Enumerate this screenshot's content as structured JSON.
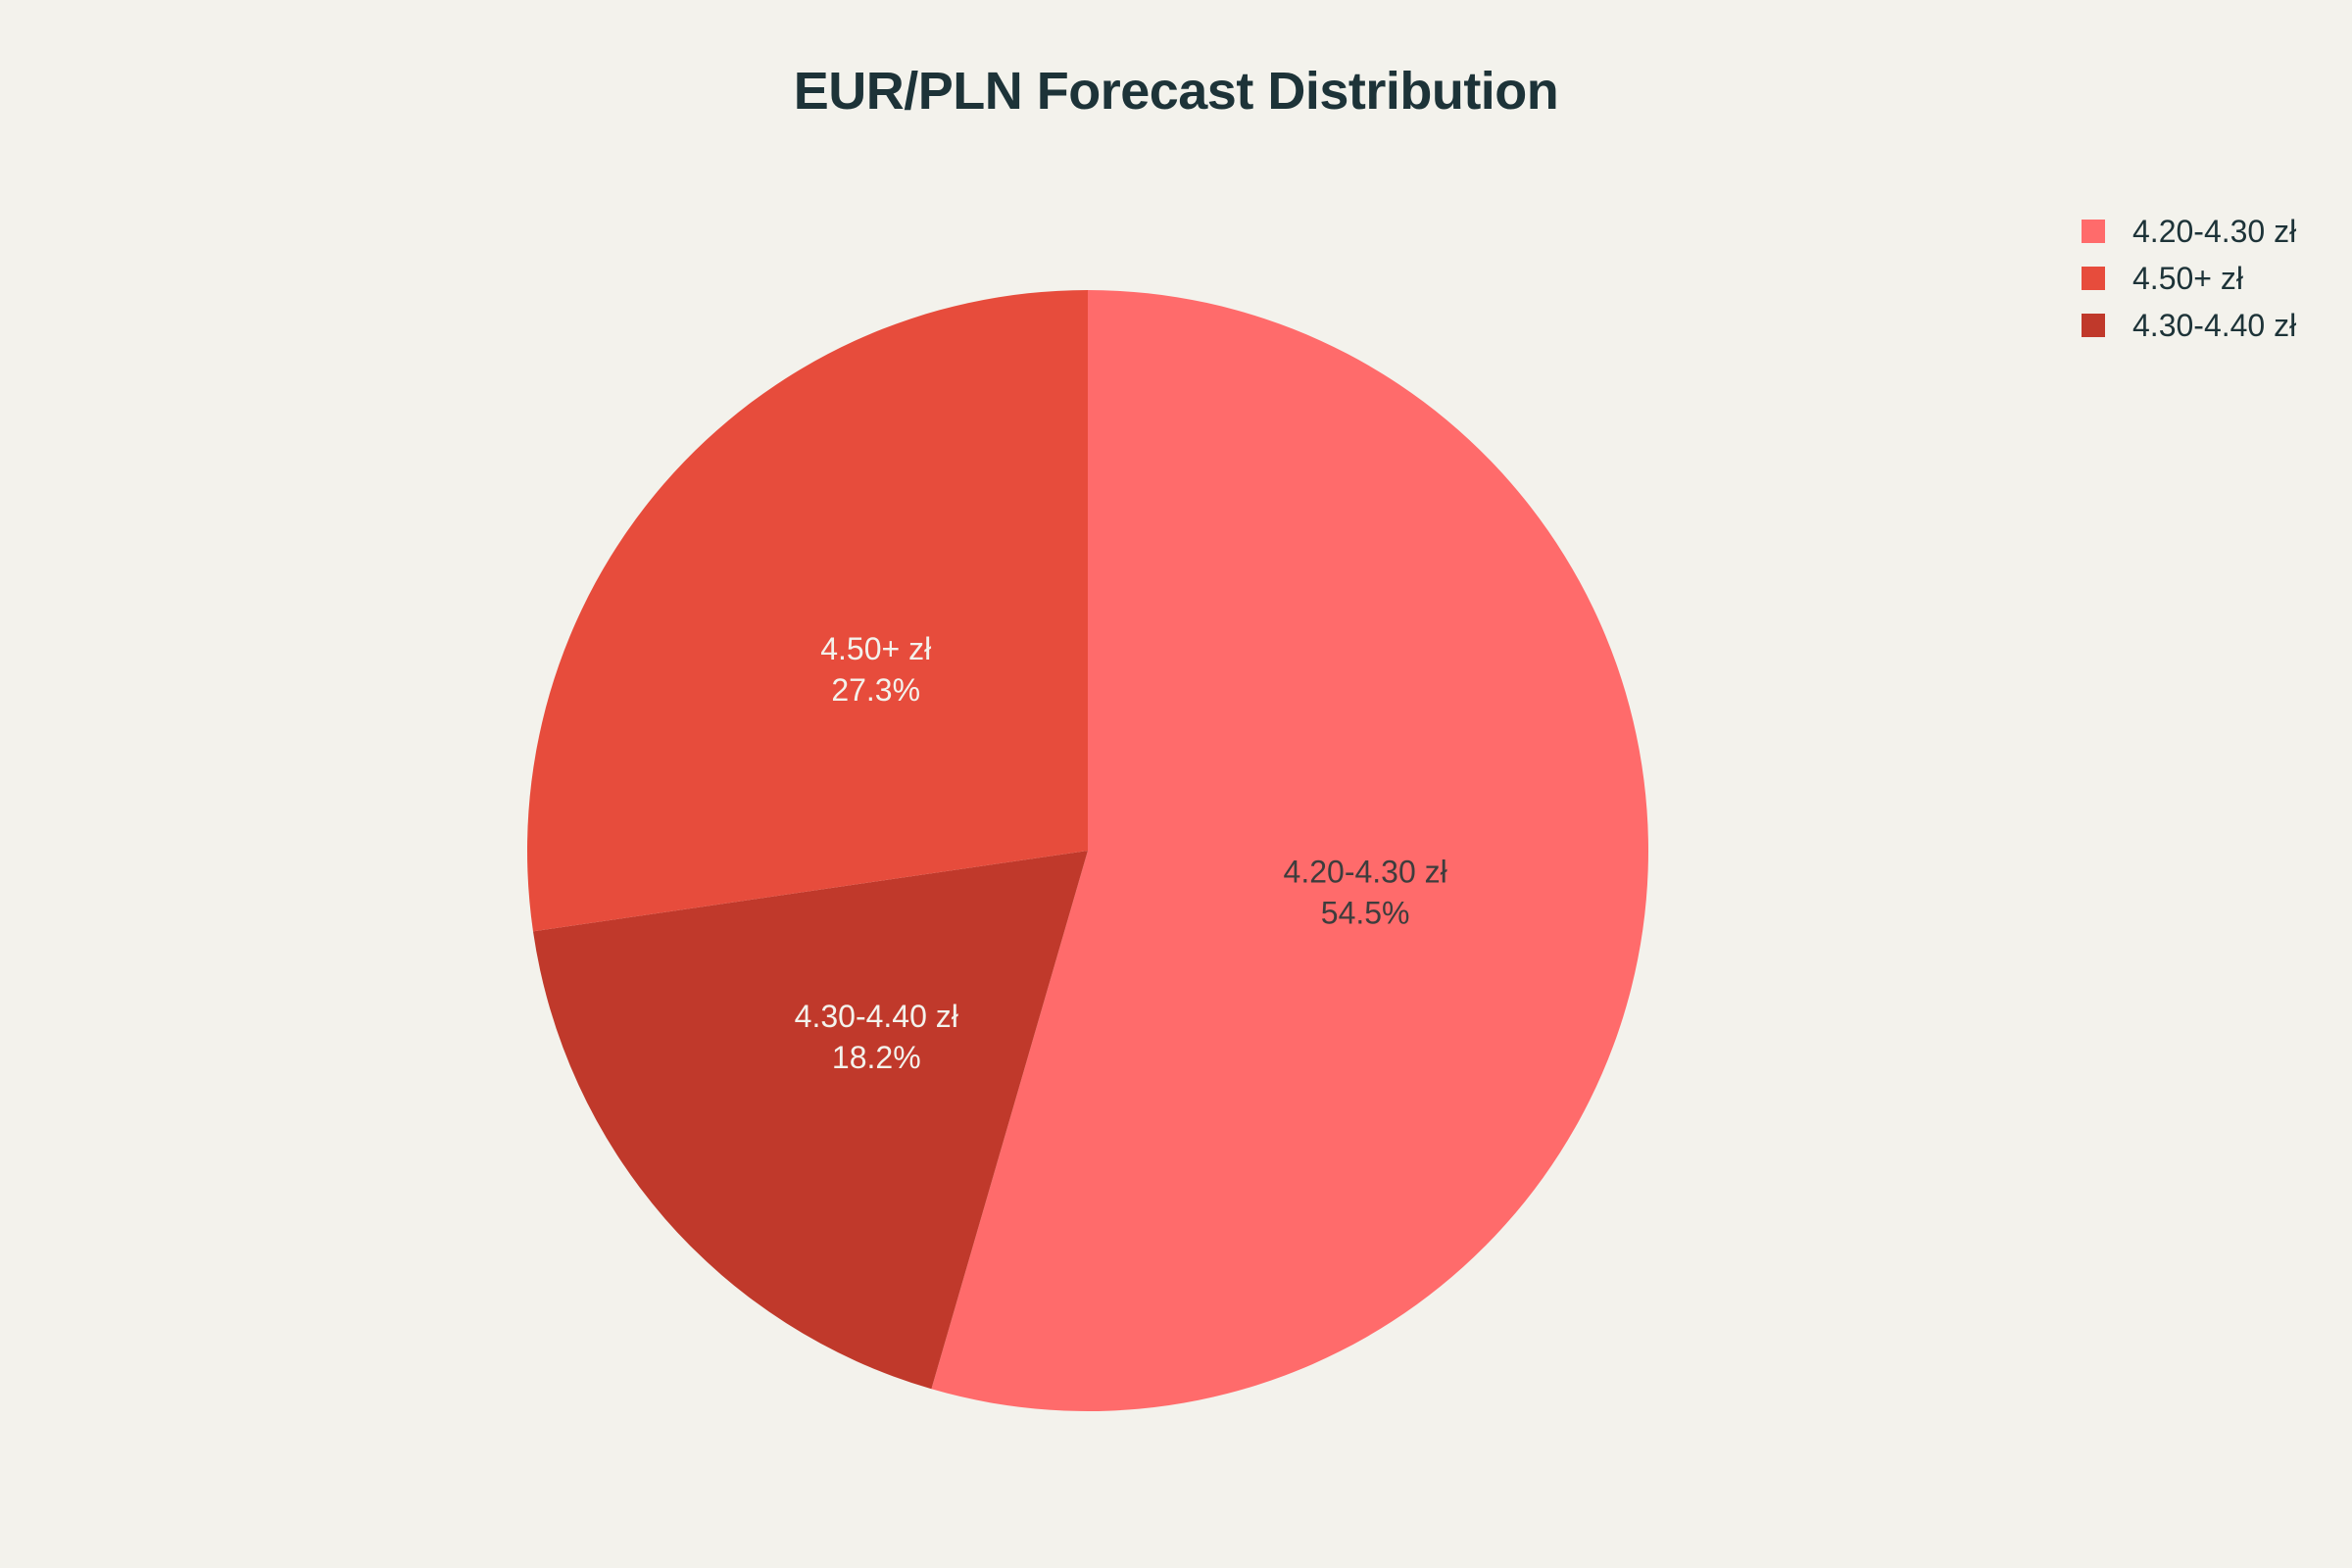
{
  "chart_data": {
    "type": "pie",
    "title": "EUR/PLN Forecast Distribution",
    "slices": [
      {
        "label": "4.20-4.30 zł",
        "value": 54.5,
        "percent_label": "54.5%",
        "color": "#ff6b6b",
        "text_color": "#3d3d3d"
      },
      {
        "label": "4.30-4.40 zł",
        "value": 18.2,
        "percent_label": "18.2%",
        "color": "#c0392b",
        "text_color": "#f3f2ec"
      },
      {
        "label": "4.50+ zł",
        "value": 27.3,
        "percent_label": "27.3%",
        "color": "#e74c3c",
        "text_color": "#f3f2ec"
      }
    ],
    "legend": {
      "placement": "top-right",
      "entries": [
        {
          "label": "4.20-4.30 zł",
          "color": "#ff6b6b"
        },
        {
          "label": "4.50+ zł",
          "color": "#e74c3c"
        },
        {
          "label": "4.30-4.40 zł",
          "color": "#c0392b"
        }
      ]
    },
    "direction": "clockwise",
    "start_angle": "12 o'clock"
  },
  "colors": {
    "background": "#f3f2ec",
    "title": "#1d3338"
  }
}
